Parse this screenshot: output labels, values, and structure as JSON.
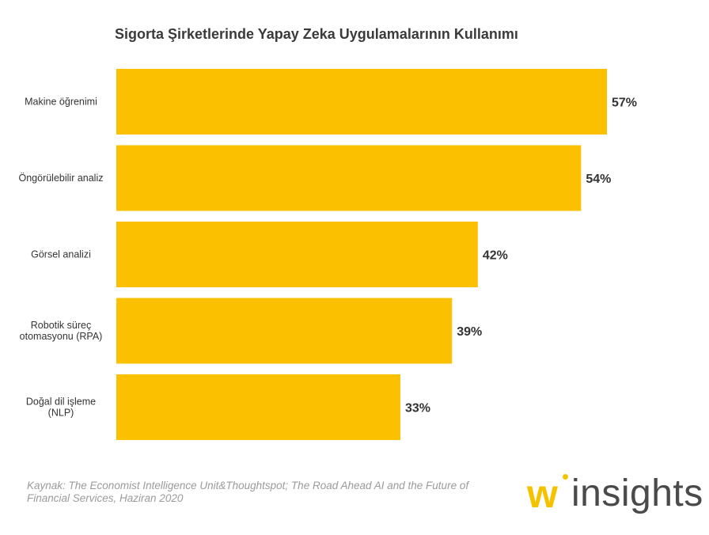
{
  "chart_data": {
    "type": "bar",
    "orientation": "horizontal",
    "title": "Sigorta Şirketlerinde Yapay Zeka Uygulamalarının Kullanımı",
    "categories": [
      [
        "Makine öğrenimi"
      ],
      [
        "Öngörülebilir analiz"
      ],
      [
        "Görsel analizi"
      ],
      [
        "Robotik süreç",
        "otomasyonu (RPA)"
      ],
      [
        "Doğal dil işleme",
        "(NLP)"
      ]
    ],
    "values": [
      57,
      54,
      42,
      39,
      33
    ],
    "value_labels": [
      "57%",
      "54%",
      "42%",
      "39%",
      "33%"
    ],
    "unit": "%",
    "xlim": [
      0,
      57
    ],
    "bar_color": "#fbc101",
    "grid": false
  },
  "source": "Kaynak: The Economist Intelligence Unit&Thoughtspot; The Road Ahead AI and the Future of Financial Services, Haziran 2020",
  "logo": {
    "mark": "w",
    "text": "insights",
    "accent": "#f5c200"
  }
}
